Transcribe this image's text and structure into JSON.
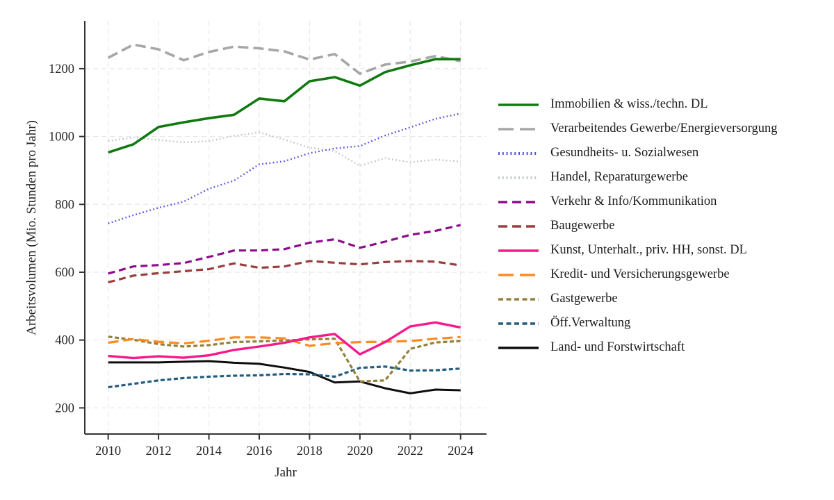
{
  "chart_data": {
    "type": "line",
    "title": "",
    "xlabel": "Jahr",
    "ylabel": "Arbeitsvolumen (Mio. Stunden pro Jahr)",
    "x": [
      2010,
      2011,
      2012,
      2013,
      2014,
      2015,
      2016,
      2017,
      2018,
      2019,
      2020,
      2021,
      2022,
      2023,
      2024
    ],
    "xticks": [
      2010,
      2012,
      2014,
      2016,
      2018,
      2020,
      2022,
      2024
    ],
    "yticks": [
      200,
      400,
      600,
      800,
      1000,
      1200
    ],
    "xlim": [
      2009.07,
      2025.03
    ],
    "ylim": [
      123,
      1341
    ],
    "grid": true,
    "legend_position": "right",
    "series": [
      {
        "name": "Immobilien & wiss./techn. DL",
        "color": "#107a10",
        "dash": "solid",
        "width": 3.6,
        "values": [
          953,
          977,
          1028,
          1042,
          1054,
          1064,
          1112,
          1104,
          1163,
          1175,
          1150,
          1190,
          1210,
          1228,
          1228
        ]
      },
      {
        "name": "Verarbeitendes Gewerbe/Energieversorgung",
        "color": "#a7a7a7",
        "dash": "long-dash",
        "width": 3.6,
        "values": [
          1232,
          1271,
          1257,
          1225,
          1249,
          1265,
          1260,
          1251,
          1227,
          1243,
          1185,
          1212,
          1221,
          1237,
          1222
        ]
      },
      {
        "name": "Gesundheits- u. Sozialwesen",
        "color": "#5656e0",
        "dash": "dot",
        "width": 2.4,
        "values": [
          744,
          768,
          790,
          808,
          846,
          870,
          918,
          927,
          951,
          965,
          972,
          1003,
          1027,
          1052,
          1068
        ]
      },
      {
        "name": "Handel, Reparaturgewerbe",
        "color": "#c0c9c2",
        "dash": "dot",
        "width": 2.4,
        "values": [
          987,
          997,
          990,
          983,
          986,
          1002,
          1012,
          991,
          967,
          957,
          914,
          936,
          924,
          932,
          926
        ]
      },
      {
        "name": "Verkehr & Info/Kommunikation",
        "color": "#8c0d8c",
        "dash": "dash",
        "width": 3.2,
        "values": [
          596,
          617,
          621,
          627,
          645,
          664,
          664,
          668,
          687,
          697,
          672,
          690,
          710,
          722,
          739
        ]
      },
      {
        "name": "Baugewerbe",
        "color": "#993d3d",
        "dash": "dash",
        "width": 3.2,
        "values": [
          570,
          590,
          597,
          603,
          609,
          626,
          613,
          617,
          633,
          628,
          623,
          630,
          633,
          631,
          620
        ]
      },
      {
        "name": "Kunst, Unterhalt., priv. HH, sonst. DL",
        "color": "#f9188b",
        "dash": "solid",
        "width": 3.4,
        "values": [
          353,
          347,
          352,
          348,
          355,
          371,
          381,
          392,
          408,
          418,
          358,
          394,
          440,
          452,
          437
        ]
      },
      {
        "name": "Kredit- und Versicherungsgewerbe",
        "color": "#fb8b1e",
        "dash": "long-dash",
        "width": 3.2,
        "values": [
          392,
          403,
          395,
          390,
          398,
          408,
          408,
          405,
          383,
          391,
          394,
          395,
          397,
          404,
          409
        ]
      },
      {
        "name": "Gastgewerbe",
        "color": "#94803a",
        "dash": "short-dash",
        "width": 3.2,
        "values": [
          410,
          401,
          388,
          381,
          385,
          394,
          396,
          399,
          402,
          404,
          278,
          281,
          374,
          393,
          397
        ]
      },
      {
        "name": "Öff.Verwaltung",
        "color": "#215c7e",
        "dash": "short-dash",
        "width": 3.2,
        "values": [
          261,
          271,
          281,
          288,
          292,
          295,
          296,
          300,
          299,
          292,
          318,
          322,
          310,
          311,
          316
        ]
      },
      {
        "name": "Land- und Forstwirtschaft",
        "color": "#0d0d0d",
        "dash": "solid",
        "width": 3.0,
        "values": [
          334,
          334,
          334,
          336,
          338,
          333,
          330,
          319,
          306,
          275,
          278,
          258,
          243,
          254,
          252
        ]
      }
    ]
  },
  "style_colors": {
    "axis": "#333333",
    "tick_label": "#262626",
    "gridline": "#e7e7e7"
  }
}
